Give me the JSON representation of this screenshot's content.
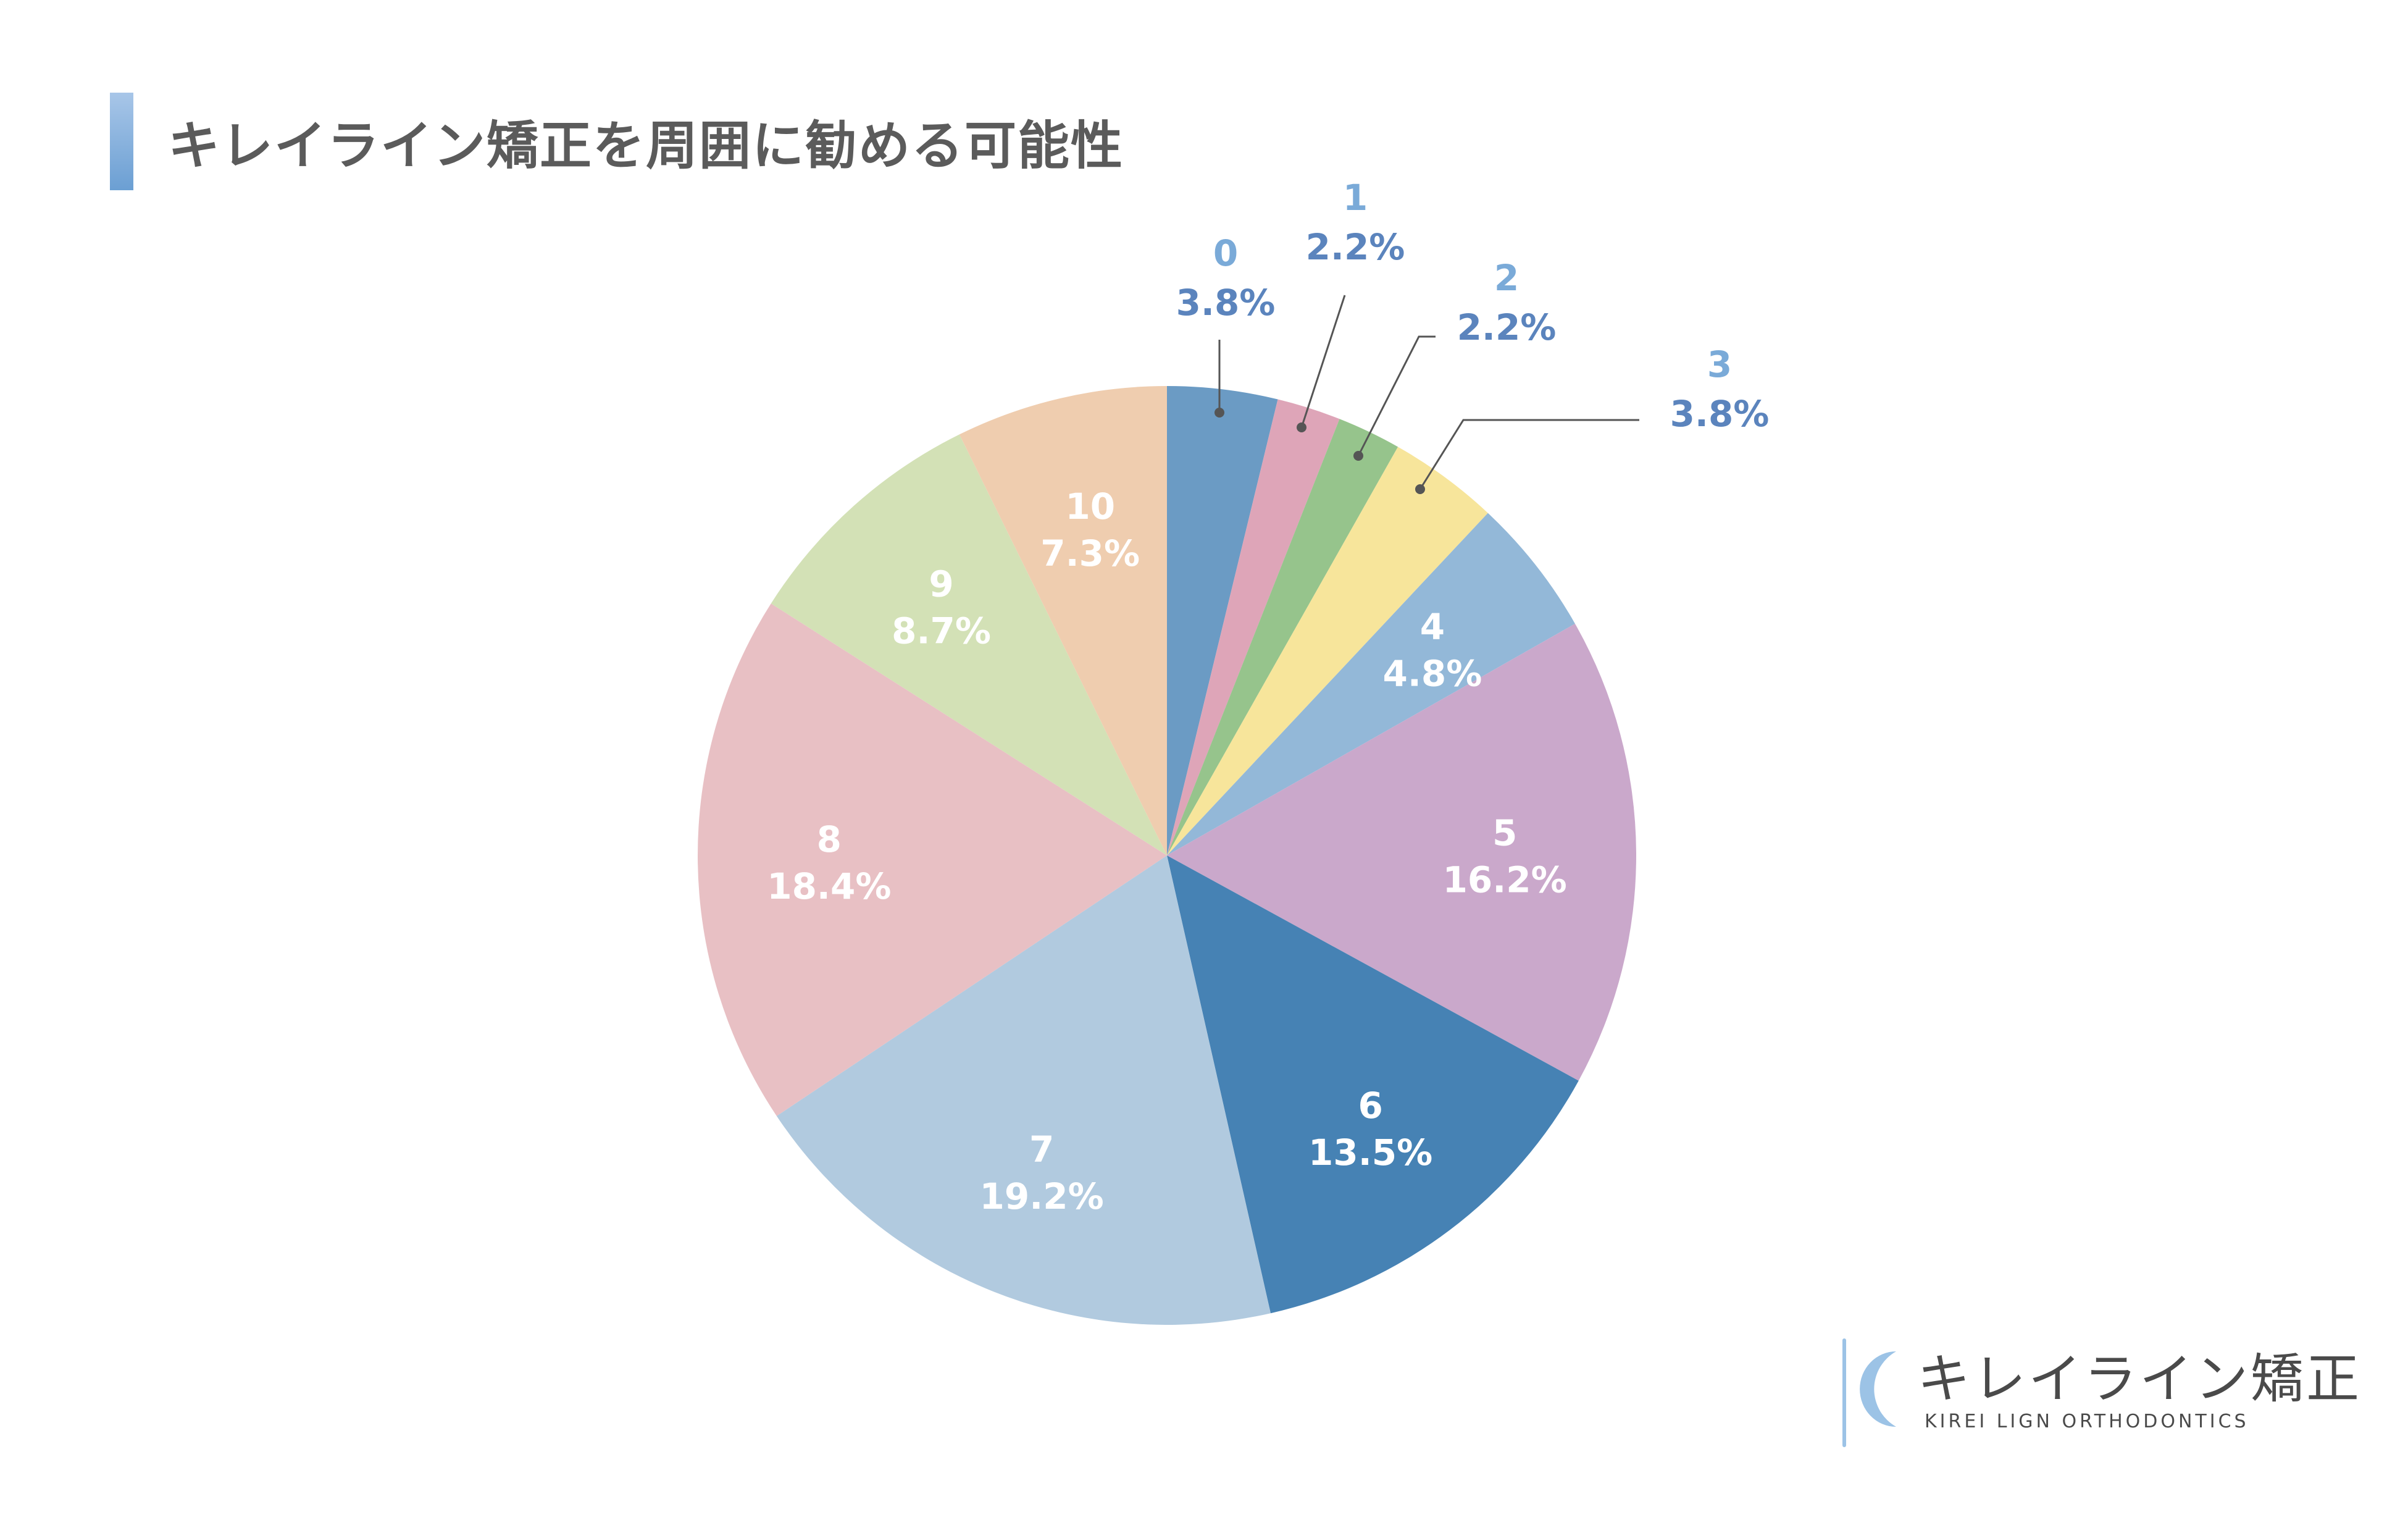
{
  "chart_data": {
    "type": "pie",
    "title": "キレイライン矯正を周囲に勧める可能性",
    "slices": [
      {
        "label": "0",
        "value": 3.8,
        "value_label": "3.8%",
        "color": "#6b9bc4",
        "label_placement": "outside"
      },
      {
        "label": "1",
        "value": 2.2,
        "value_label": "2.2%",
        "color": "#dea5b8",
        "label_placement": "outside"
      },
      {
        "label": "2",
        "value": 2.2,
        "value_label": "2.2%",
        "color": "#96c48c",
        "label_placement": "outside"
      },
      {
        "label": "3",
        "value": 3.8,
        "value_label": "3.8%",
        "color": "#f7e59b",
        "label_placement": "outside"
      },
      {
        "label": "4",
        "value": 4.8,
        "value_label": "4.8%",
        "color": "#93b8d8",
        "label_placement": "inside"
      },
      {
        "label": "5",
        "value": 16.2,
        "value_label": "16.2%",
        "color": "#caa8cb",
        "label_placement": "inside"
      },
      {
        "label": "6",
        "value": 13.5,
        "value_label": "13.5%",
        "color": "#4682b4",
        "label_placement": "inside"
      },
      {
        "label": "7",
        "value": 19.2,
        "value_label": "19.2%",
        "color": "#b1cadf",
        "label_placement": "inside"
      },
      {
        "label": "8",
        "value": 18.4,
        "value_label": "18.4%",
        "color": "#e8c0c4",
        "label_placement": "inside"
      },
      {
        "label": "9",
        "value": 8.7,
        "value_label": "8.7%",
        "color": "#d3e1b6",
        "label_placement": "inside"
      },
      {
        "label": "10",
        "value": 7.3,
        "value_label": "7.3%",
        "color": "#efcdaf",
        "label_placement": "inside"
      }
    ],
    "start": "12 o'clock",
    "direction": "clockwise",
    "colors": {
      "outside_category_label": "#7aaad8",
      "outside_value_label": "#5b84bd",
      "inside_label": "#ffffff",
      "leader_line": "#555555"
    }
  },
  "logo": {
    "name": "キレイライン矯正",
    "subtitle": "KIREI LIGN ORTHODONTICS",
    "accent_color": "#9cc3e6"
  }
}
